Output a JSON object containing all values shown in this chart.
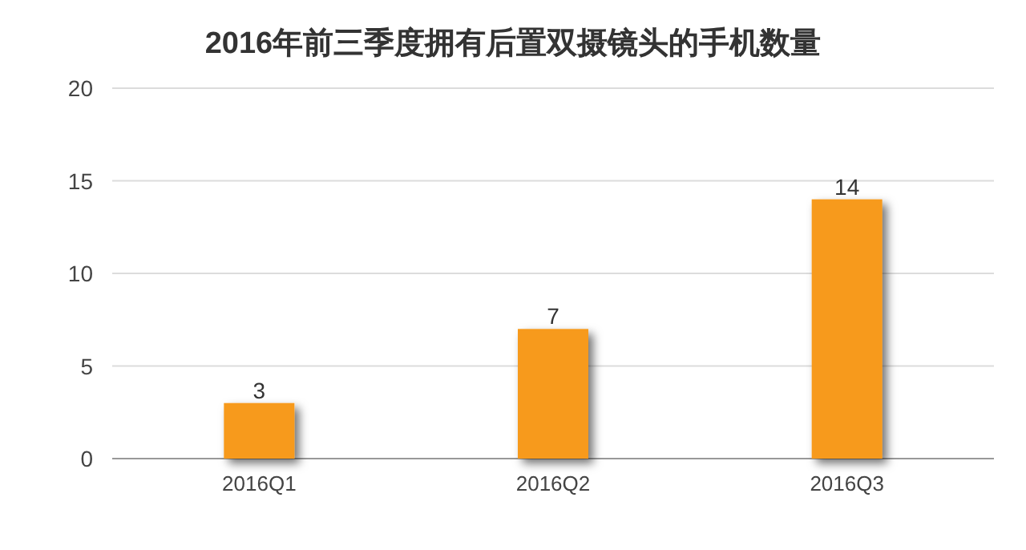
{
  "chart_data": {
    "type": "bar",
    "title": "2016年前三季度拥有后置双摄镜头的手机数量",
    "categories": [
      "2016Q1",
      "2016Q2",
      "2016Q3"
    ],
    "values": [
      3,
      7,
      14
    ],
    "color": "#f79a1e",
    "ylim": [
      0,
      20
    ],
    "yticks": [
      0,
      5,
      10,
      15,
      20
    ],
    "grid": "y",
    "data_labels": true
  }
}
